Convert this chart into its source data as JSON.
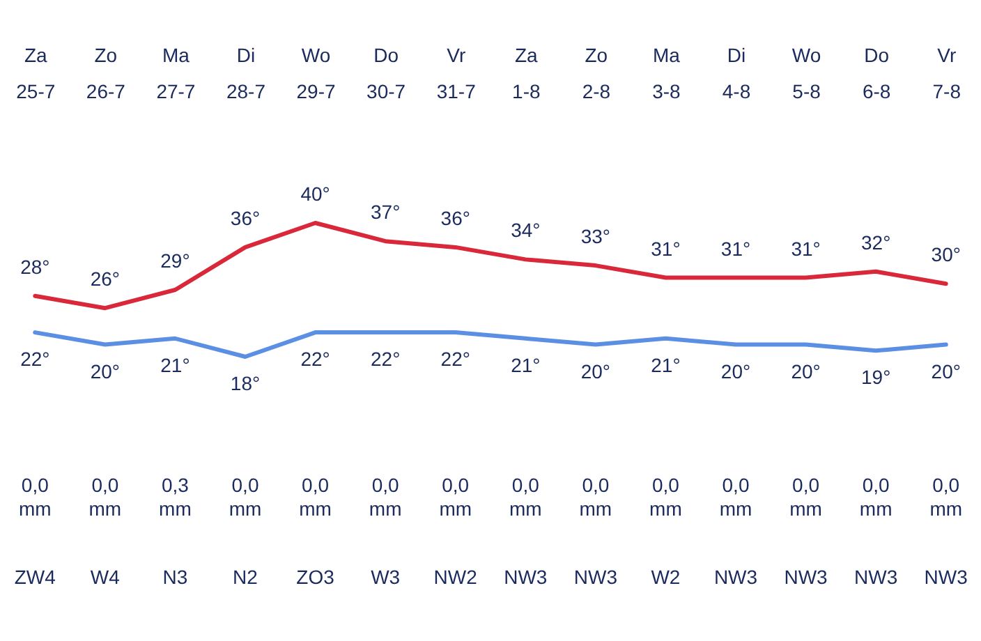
{
  "chart_data": {
    "type": "line",
    "categories": [
      "Za\n25-7",
      "Zo\n26-7",
      "Ma\n27-7",
      "Di\n28-7",
      "Wo\n29-7",
      "Do\n30-7",
      "Vr\n31-7",
      "Za\n1-8",
      "Zo\n2-8",
      "Ma\n3-8",
      "Di\n4-8",
      "Wo\n5-8",
      "Do\n6-8",
      "Vr\n7-8"
    ],
    "series": [
      {
        "color": "#d8283a",
        "values": [
          28,
          26,
          29,
          36,
          40,
          37,
          36,
          34,
          33,
          31,
          31,
          31,
          32,
          30
        ],
        "value_labels": [
          "28°",
          "26°",
          "29°",
          "36°",
          "40°",
          "37°",
          "36°",
          "34°",
          "33°",
          "31°",
          "31°",
          "31°",
          "32°",
          "30°"
        ]
      },
      {
        "color": "#5b8fe3",
        "values": [
          22,
          20,
          21,
          18,
          22,
          22,
          22,
          21,
          20,
          21,
          20,
          20,
          19,
          20
        ],
        "value_labels": [
          "22°",
          "20°",
          "21°",
          "18°",
          "22°",
          "22°",
          "22°",
          "21°",
          "20°",
          "21°",
          "20°",
          "20°",
          "19°",
          "20°"
        ]
      }
    ],
    "tick_labels": "x",
    "grid": false,
    "marker": "none",
    "annotations": [
      "0,0 mm",
      "0,0 mm",
      "0,3 mm",
      "0,0 mm",
      "0,0 mm",
      "0,0 mm",
      "0,0 mm",
      "0,0 mm",
      "0,0 mm",
      "0,0 mm",
      "0,0 mm",
      "0,0 mm",
      "0,0 mm",
      "0,0 mm",
      "ZW4",
      "W4",
      "N3",
      "N2",
      "ZO3",
      "W3",
      "NW2",
      "NW3",
      "NW3",
      "W2",
      "NW3",
      "NW3",
      "NW3",
      "NW3"
    ]
  }
}
